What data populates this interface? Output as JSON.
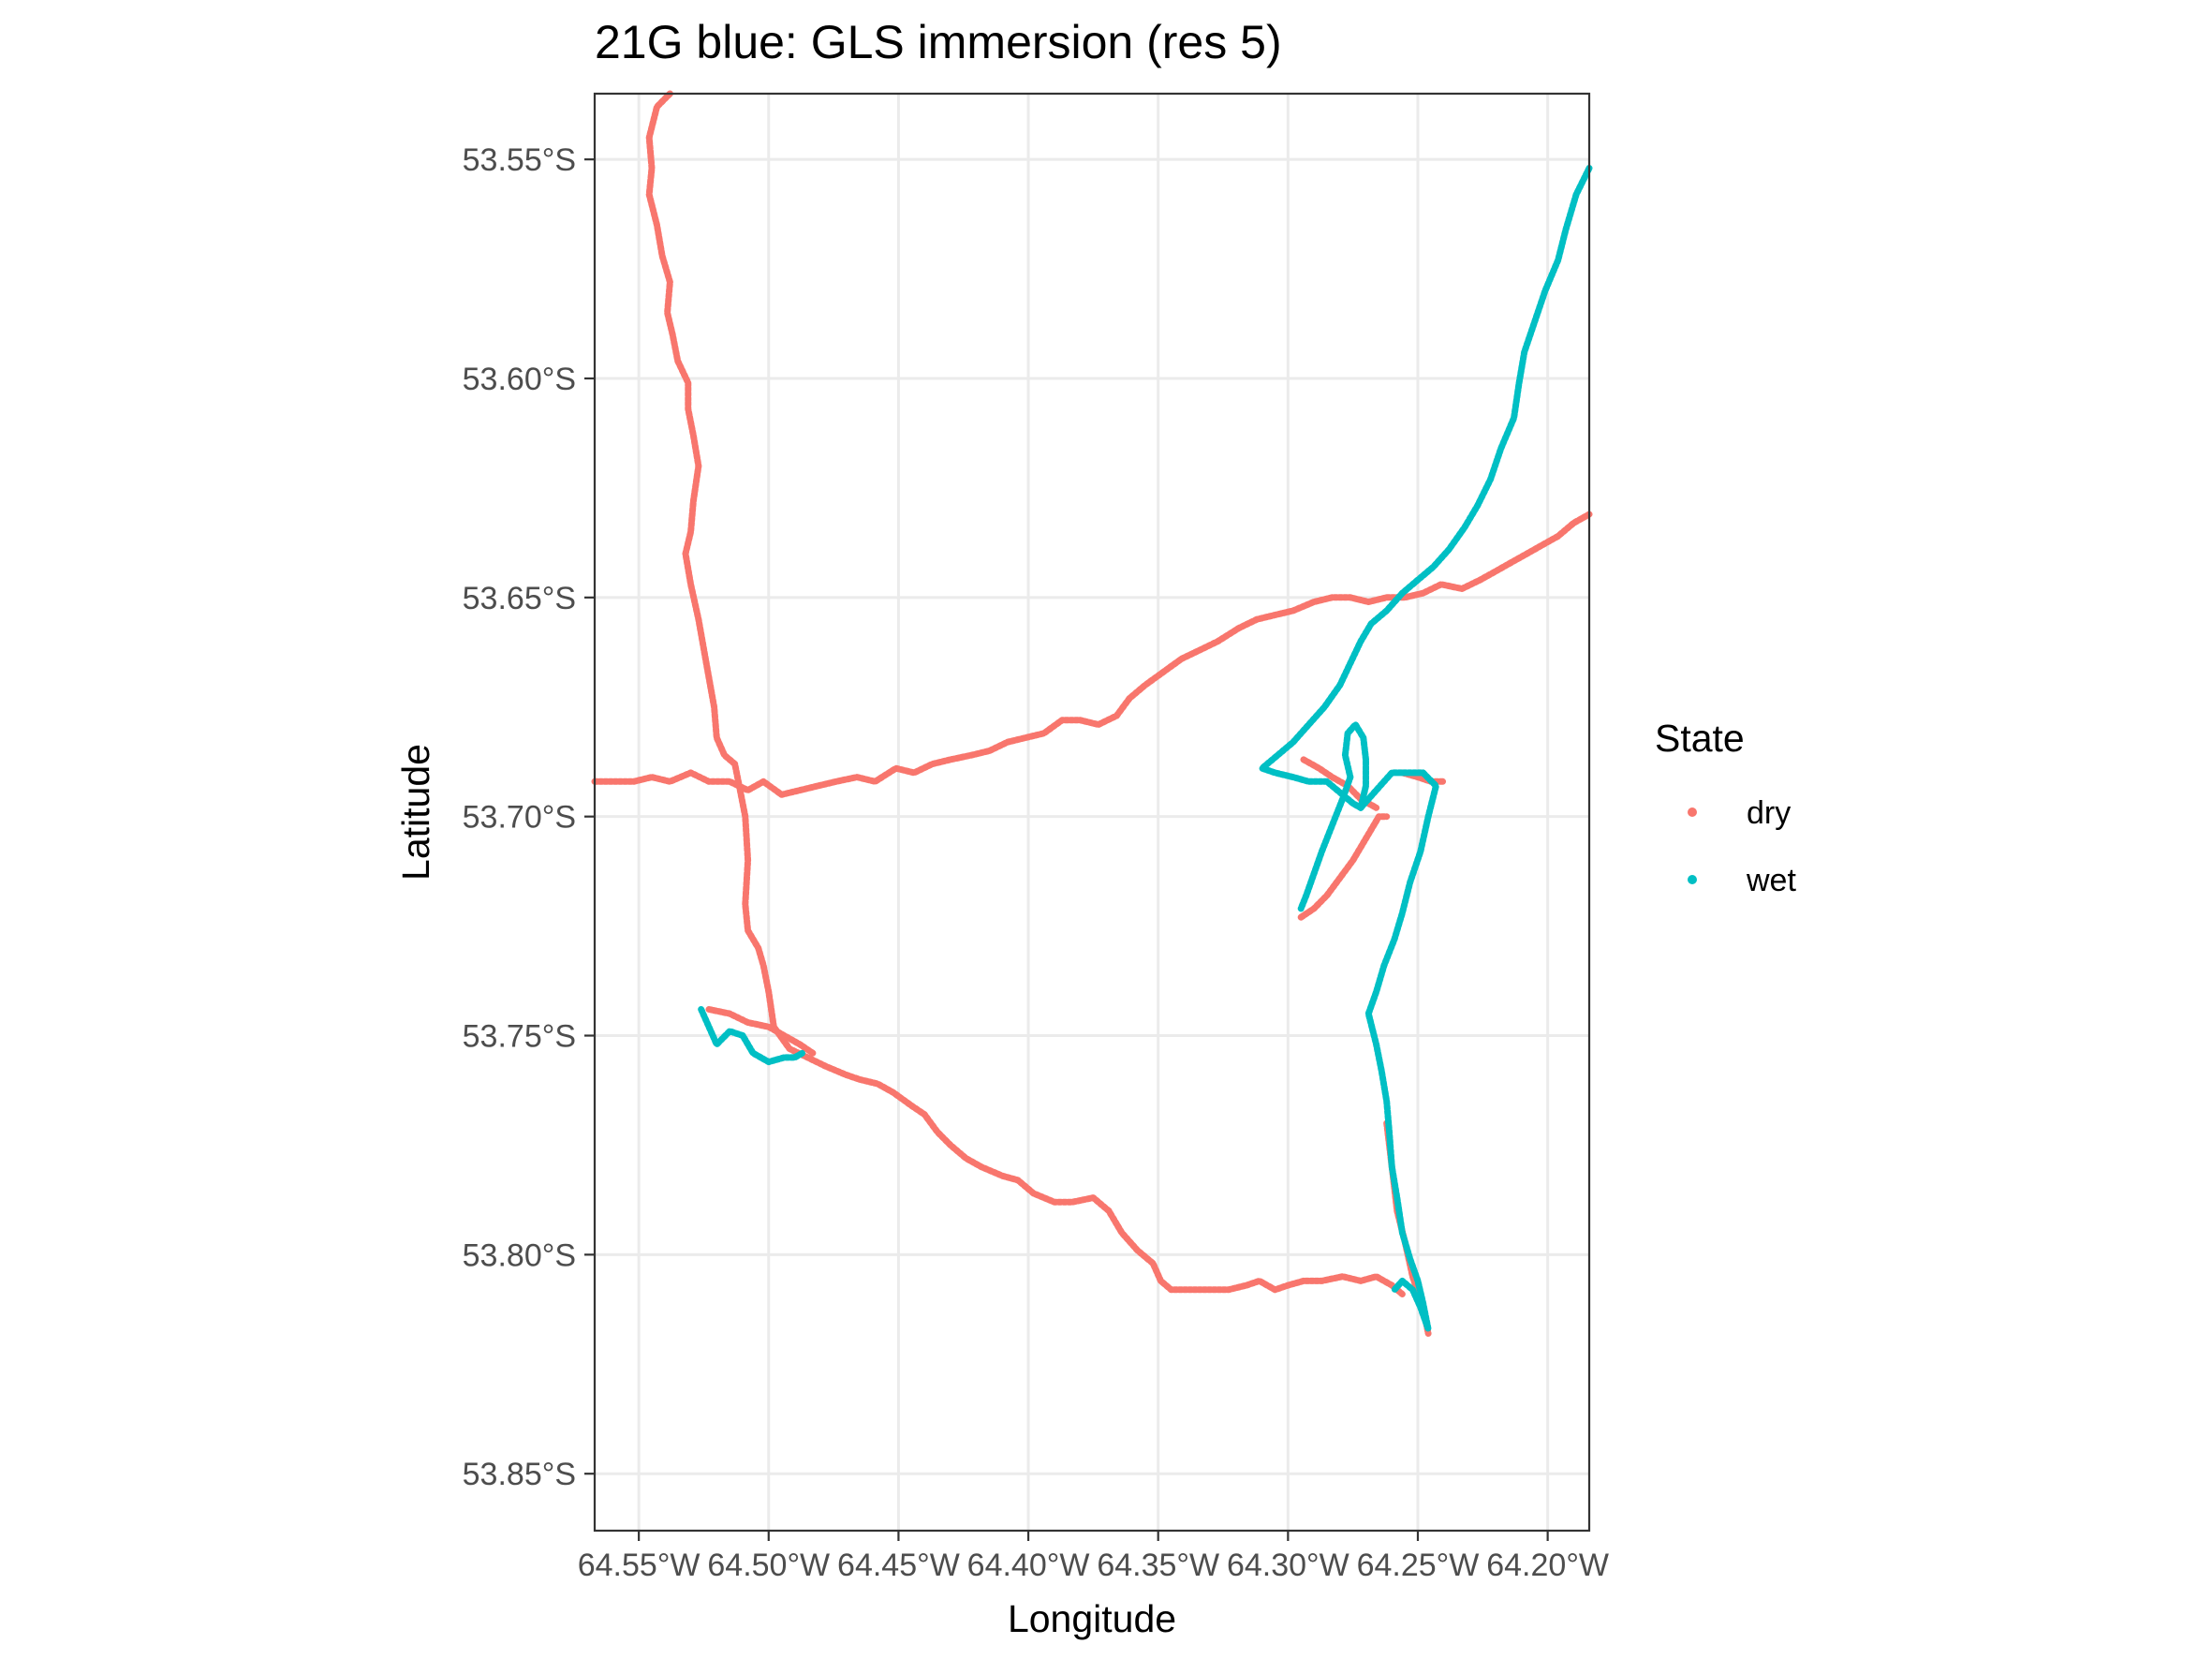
{
  "chart_data": {
    "type": "scatter",
    "title": "21G blue: GLS immersion (res 5)",
    "xlabel": "Longitude",
    "ylabel": "Latitude",
    "xlim": [
      -64.567,
      -64.184
    ],
    "ylim": [
      -53.863,
      -53.535
    ],
    "x_ticks": [
      -64.55,
      -64.5,
      -64.45,
      -64.4,
      -64.35,
      -64.3,
      -64.25,
      -64.2
    ],
    "x_tick_labels": [
      "64.55°W",
      "64.50°W",
      "64.45°W",
      "64.40°W",
      "64.35°W",
      "64.30°W",
      "64.25°W",
      "64.20°W"
    ],
    "y_ticks": [
      -53.55,
      -53.6,
      -53.65,
      -53.7,
      -53.75,
      -53.8,
      -53.85
    ],
    "y_tick_labels": [
      "53.55°S",
      "53.60°S",
      "53.65°S",
      "53.70°S",
      "53.75°S",
      "53.80°S",
      "53.85°S"
    ],
    "grid": true,
    "legend": {
      "title": "State",
      "position": "right",
      "entries": [
        {
          "label": "dry",
          "color": "#F8766D"
        },
        {
          "label": "wet",
          "color": "#00BFC4"
        }
      ]
    },
    "series": [
      {
        "name": "dry",
        "color": "#F8766D",
        "paths": [
          [
            [
              -64.538,
              -53.535
            ],
            [
              -64.543,
              -53.538
            ],
            [
              -64.546,
              -53.545
            ],
            [
              -64.545,
              -53.552
            ],
            [
              -64.546,
              -53.558
            ],
            [
              -64.543,
              -53.565
            ],
            [
              -64.541,
              -53.572
            ],
            [
              -64.538,
              -53.578
            ],
            [
              -64.539,
              -53.585
            ],
            [
              -64.537,
              -53.59
            ],
            [
              -64.535,
              -53.596
            ],
            [
              -64.531,
              -53.601
            ],
            [
              -64.531,
              -53.607
            ],
            [
              -64.529,
              -53.613
            ],
            [
              -64.527,
              -53.62
            ],
            [
              -64.529,
              -53.628
            ],
            [
              -64.53,
              -53.635
            ],
            [
              -64.532,
              -53.64
            ],
            [
              -64.53,
              -53.647
            ],
            [
              -64.527,
              -53.655
            ],
            [
              -64.524,
              -53.665
            ],
            [
              -64.521,
              -53.675
            ],
            [
              -64.52,
              -53.682
            ],
            [
              -64.517,
              -53.686
            ],
            [
              -64.513,
              -53.688
            ],
            [
              -64.511,
              -53.694
            ],
            [
              -64.509,
              -53.7
            ],
            [
              -64.508,
              -53.71
            ],
            [
              -64.509,
              -53.72
            ],
            [
              -64.508,
              -53.726
            ],
            [
              -64.504,
              -53.73
            ],
            [
              -64.502,
              -53.734
            ],
            [
              -64.5,
              -53.74
            ],
            [
              -64.498,
              -53.748
            ],
            [
              -64.492,
              -53.753
            ],
            [
              -64.485,
              -53.755
            ],
            [
              -64.478,
              -53.757
            ],
            [
              -64.47,
              -53.759
            ],
            [
              -64.465,
              -53.76
            ],
            [
              -64.458,
              -53.761
            ],
            [
              -64.452,
              -53.763
            ],
            [
              -64.445,
              -53.766
            ],
            [
              -64.44,
              -53.768
            ],
            [
              -64.435,
              -53.772
            ],
            [
              -64.43,
              -53.775
            ],
            [
              -64.424,
              -53.778
            ],
            [
              -64.418,
              -53.78
            ],
            [
              -64.41,
              -53.782
            ],
            [
              -64.404,
              -53.783
            ],
            [
              -64.398,
              -53.786
            ],
            [
              -64.39,
              -53.788
            ],
            [
              -64.383,
              -53.788
            ],
            [
              -64.375,
              -53.787
            ],
            [
              -64.369,
              -53.79
            ],
            [
              -64.364,
              -53.795
            ],
            [
              -64.358,
              -53.799
            ],
            [
              -64.352,
              -53.802
            ],
            [
              -64.349,
              -53.806
            ],
            [
              -64.345,
              -53.808
            ],
            [
              -64.337,
              -53.808
            ],
            [
              -64.33,
              -53.808
            ],
            [
              -64.323,
              -53.808
            ],
            [
              -64.316,
              -53.807
            ],
            [
              -64.311,
              -53.806
            ],
            [
              -64.305,
              -53.808
            ],
            [
              -64.3,
              -53.807
            ],
            [
              -64.294,
              -53.806
            ],
            [
              -64.287,
              -53.806
            ],
            [
              -64.279,
              -53.805
            ],
            [
              -64.272,
              -53.806
            ],
            [
              -64.266,
              -53.805
            ],
            [
              -64.26,
              -53.807
            ],
            [
              -64.256,
              -53.809
            ]
          ],
          [
            [
              -64.567,
              -53.692
            ],
            [
              -64.56,
              -53.692
            ],
            [
              -64.552,
              -53.692
            ],
            [
              -64.545,
              -53.691
            ],
            [
              -64.538,
              -53.692
            ],
            [
              -64.53,
              -53.69
            ],
            [
              -64.523,
              -53.692
            ],
            [
              -64.515,
              -53.692
            ],
            [
              -64.508,
              -53.694
            ],
            [
              -64.502,
              -53.692
            ],
            [
              -64.495,
              -53.695
            ],
            [
              -64.488,
              -53.694
            ],
            [
              -64.481,
              -53.693
            ],
            [
              -64.474,
              -53.692
            ],
            [
              -64.466,
              -53.691
            ],
            [
              -64.459,
              -53.692
            ],
            [
              -64.451,
              -53.689
            ],
            [
              -64.444,
              -53.69
            ],
            [
              -64.437,
              -53.688
            ],
            [
              -64.43,
              -53.687
            ],
            [
              -64.422,
              -53.686
            ],
            [
              -64.415,
              -53.685
            ],
            [
              -64.408,
              -53.683
            ],
            [
              -64.401,
              -53.682
            ],
            [
              -64.394,
              -53.681
            ],
            [
              -64.387,
              -53.678
            ],
            [
              -64.38,
              -53.678
            ],
            [
              -64.373,
              -53.679
            ],
            [
              -64.366,
              -53.677
            ],
            [
              -64.361,
              -53.673
            ],
            [
              -64.355,
              -53.67
            ],
            [
              -64.348,
              -53.667
            ],
            [
              -64.341,
              -53.664
            ],
            [
              -64.334,
              -53.662
            ],
            [
              -64.327,
              -53.66
            ],
            [
              -64.319,
              -53.657
            ],
            [
              -64.312,
              -53.655
            ],
            [
              -64.305,
              -53.654
            ],
            [
              -64.298,
              -53.653
            ],
            [
              -64.29,
              -53.651
            ],
            [
              -64.283,
              -53.65
            ],
            [
              -64.276,
              -53.65
            ],
            [
              -64.269,
              -53.651
            ],
            [
              -64.262,
              -53.65
            ],
            [
              -64.255,
              -53.65
            ],
            [
              -64.248,
              -53.649
            ],
            [
              -64.241,
              -53.647
            ],
            [
              -64.233,
              -53.648
            ],
            [
              -64.226,
              -53.646
            ],
            [
              -64.22,
              -53.644
            ],
            [
              -64.214,
              -53.642
            ],
            [
              -64.208,
              -53.64
            ],
            [
              -64.202,
              -53.638
            ],
            [
              -64.196,
              -53.636
            ],
            [
              -64.19,
              -53.633
            ],
            [
              -64.184,
              -53.631
            ]
          ],
          [
            [
              -64.523,
              -53.744
            ],
            [
              -64.515,
              -53.745
            ],
            [
              -64.508,
              -53.747
            ],
            [
              -64.5,
              -53.748
            ],
            [
              -64.494,
              -53.75
            ],
            [
              -64.488,
              -53.752
            ],
            [
              -64.483,
              -53.754
            ]
          ],
          [
            [
              -64.295,
              -53.723
            ],
            [
              -64.29,
              -53.721
            ],
            [
              -64.285,
              -53.718
            ],
            [
              -64.28,
              -53.714
            ],
            [
              -64.275,
              -53.71
            ],
            [
              -64.271,
              -53.706
            ],
            [
              -64.268,
              -53.703
            ],
            [
              -64.265,
              -53.7
            ],
            [
              -64.262,
              -53.7
            ]
          ],
          [
            [
              -64.294,
              -53.687
            ],
            [
              -64.288,
              -53.689
            ],
            [
              -64.283,
              -53.691
            ],
            [
              -64.277,
              -53.693
            ],
            [
              -64.272,
              -53.696
            ],
            [
              -64.266,
              -53.698
            ]
          ],
          [
            [
              -64.256,
              -53.69
            ],
            [
              -64.25,
              -53.691
            ],
            [
              -64.245,
              -53.692
            ],
            [
              -64.24,
              -53.692
            ]
          ],
          [
            [
              -64.262,
              -53.77
            ],
            [
              -64.26,
              -53.78
            ],
            [
              -64.258,
              -53.79
            ],
            [
              -64.255,
              -53.797
            ],
            [
              -64.252,
              -53.805
            ],
            [
              -64.248,
              -53.812
            ],
            [
              -64.246,
              -53.818
            ]
          ]
        ]
      },
      {
        "name": "wet",
        "color": "#00BFC4",
        "paths": [
          [
            [
              -64.184,
              -53.552
            ],
            [
              -64.189,
              -53.558
            ],
            [
              -64.193,
              -53.566
            ],
            [
              -64.196,
              -53.573
            ],
            [
              -64.201,
              -53.58
            ],
            [
              -64.205,
              -53.587
            ],
            [
              -64.209,
              -53.594
            ],
            [
              -64.211,
              -53.601
            ],
            [
              -64.213,
              -53.609
            ],
            [
              -64.218,
              -53.616
            ],
            [
              -64.222,
              -53.623
            ],
            [
              -64.227,
              -53.629
            ],
            [
              -64.232,
              -53.634
            ],
            [
              -64.238,
              -53.639
            ],
            [
              -64.244,
              -53.643
            ],
            [
              -64.25,
              -53.646
            ],
            [
              -64.256,
              -53.649
            ],
            [
              -64.262,
              -53.653
            ],
            [
              -64.268,
              -53.656
            ],
            [
              -64.272,
              -53.66
            ],
            [
              -64.276,
              -53.665
            ],
            [
              -64.28,
              -53.67
            ],
            [
              -64.286,
              -53.675
            ],
            [
              -64.292,
              -53.679
            ],
            [
              -64.298,
              -53.683
            ],
            [
              -64.304,
              -53.686
            ],
            [
              -64.31,
              -53.689
            ],
            [
              -64.305,
              -53.69
            ],
            [
              -64.298,
              -53.691
            ],
            [
              -64.292,
              -53.692
            ],
            [
              -64.285,
              -53.692
            ],
            [
              -64.279,
              -53.695
            ],
            [
              -64.275,
              -53.697
            ],
            [
              -64.272,
              -53.698
            ]
          ],
          [
            [
              -64.272,
              -53.698
            ],
            [
              -64.27,
              -53.693
            ],
            [
              -64.27,
              -53.687
            ],
            [
              -64.271,
              -53.682
            ],
            [
              -64.274,
              -53.679
            ],
            [
              -64.277,
              -53.681
            ],
            [
              -64.278,
              -53.686
            ],
            [
              -64.276,
              -53.691
            ],
            [
              -64.279,
              -53.696
            ],
            [
              -64.283,
              -53.702
            ],
            [
              -64.287,
              -53.708
            ],
            [
              -64.29,
              -53.713
            ],
            [
              -64.293,
              -53.718
            ],
            [
              -64.295,
              -53.721
            ]
          ],
          [
            [
              -64.272,
              -53.698
            ],
            [
              -64.266,
              -53.694
            ],
            [
              -64.26,
              -53.69
            ],
            [
              -64.254,
              -53.69
            ],
            [
              -64.248,
              -53.69
            ],
            [
              -64.243,
              -53.693
            ],
            [
              -64.246,
              -53.7
            ],
            [
              -64.249,
              -53.708
            ],
            [
              -64.253,
              -53.715
            ],
            [
              -64.256,
              -53.722
            ],
            [
              -64.259,
              -53.728
            ],
            [
              -64.263,
              -53.734
            ],
            [
              -64.266,
              -53.74
            ],
            [
              -64.269,
              -53.745
            ],
            [
              -64.266,
              -53.752
            ],
            [
              -64.264,
              -53.758
            ],
            [
              -64.262,
              -53.765
            ],
            [
              -64.261,
              -53.772
            ],
            [
              -64.26,
              -53.78
            ],
            [
              -64.258,
              -53.787
            ],
            [
              -64.256,
              -53.795
            ],
            [
              -64.253,
              -53.801
            ],
            [
              -64.25,
              -53.806
            ],
            [
              -64.248,
              -53.811
            ],
            [
              -64.246,
              -53.817
            ],
            [
              -64.249,
              -53.812
            ],
            [
              -64.252,
              -53.808
            ],
            [
              -64.256,
              -53.806
            ],
            [
              -64.259,
              -53.808
            ]
          ],
          [
            [
              -64.526,
              -53.744
            ],
            [
              -64.523,
              -53.748
            ],
            [
              -64.52,
              -53.752
            ],
            [
              -64.515,
              -53.749
            ],
            [
              -64.51,
              -53.75
            ],
            [
              -64.506,
              -53.754
            ],
            [
              -64.5,
              -53.756
            ],
            [
              -64.494,
              -53.755
            ],
            [
              -64.49,
              -53.755
            ],
            [
              -64.487,
              -53.754
            ]
          ]
        ]
      }
    ]
  }
}
